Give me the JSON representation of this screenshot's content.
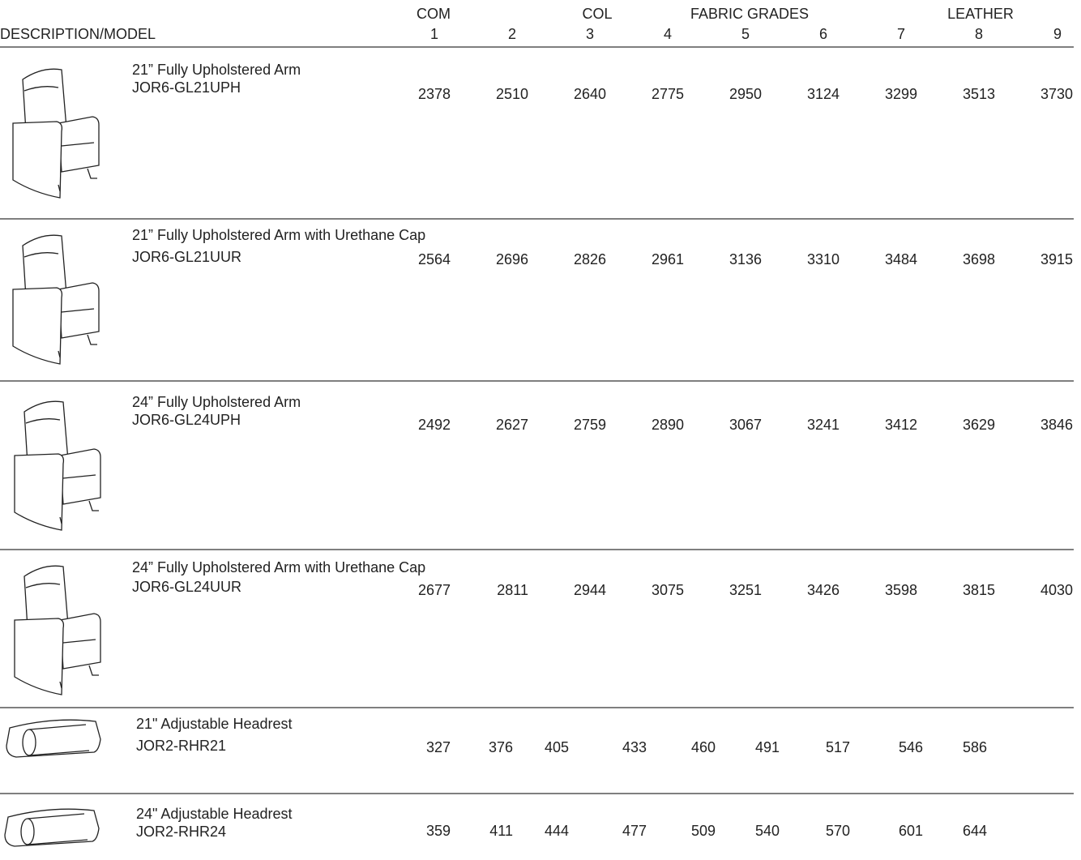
{
  "header": {
    "groups": [
      "COM",
      "COL",
      "FABRIC GRADES",
      "LEATHER"
    ],
    "description_label": "DESCRIPTION/MODEL",
    "grades": [
      1,
      2,
      3,
      4,
      5,
      6,
      7,
      8,
      9
    ]
  },
  "rows": [
    {
      "description": "21” Fully Upholstered Arm",
      "model": "JOR6-GL21UPH",
      "prices": [
        2378,
        2510,
        2640,
        2775,
        2950,
        3124,
        3299,
        3513,
        3730
      ]
    },
    {
      "description": "21” Fully Upholstered Arm with Urethane Cap",
      "model": "JOR6-GL21UUR",
      "prices": [
        2564,
        2696,
        2826,
        2961,
        3136,
        3310,
        3484,
        3698,
        3915
      ]
    },
    {
      "description": "24” Fully Upholstered Arm",
      "model": "JOR6-GL24UPH",
      "prices": [
        2492,
        2627,
        2759,
        2890,
        3067,
        3241,
        3412,
        3629,
        3846
      ]
    },
    {
      "description": "24” Fully Upholstered Arm with Urethane Cap",
      "model": "JOR6-GL24UUR",
      "prices": [
        2677,
        2811,
        2944,
        3075,
        3251,
        3426,
        3598,
        3815,
        4030
      ]
    },
    {
      "description": "21\" Adjustable Headrest",
      "model": "JOR2-RHR21",
      "prices": [
        327,
        376,
        405,
        433,
        460,
        491,
        517,
        546,
        586
      ]
    },
    {
      "description": "24\" Adjustable Headrest",
      "model": "JOR2-RHR24",
      "prices": [
        359,
        411,
        444,
        477,
        509,
        540,
        570,
        601,
        644
      ]
    }
  ]
}
